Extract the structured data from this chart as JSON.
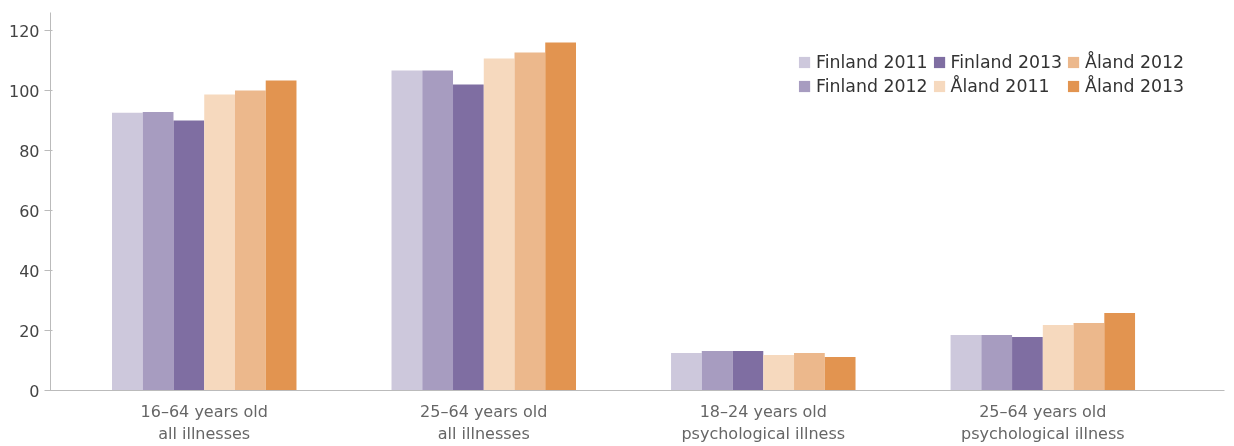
{
  "chart_data": {
    "type": "bar",
    "categories": [
      "16–64 years old\nall illnesses",
      "25–64 years old\nall illnesses",
      "18–24 years old\npsychological illness",
      "25–64 years old\npsychological illness"
    ],
    "series": [
      {
        "name": "Finland 2011",
        "color": "#cdc8dc",
        "values": [
          92.6,
          106.7,
          12.5,
          18.5
        ]
      },
      {
        "name": "Finland 2012",
        "color": "#a79cc0",
        "values": [
          92.8,
          106.7,
          13.2,
          18.5
        ]
      },
      {
        "name": "Finland 2013",
        "color": "#7f6ea2",
        "values": [
          90,
          102,
          13.2,
          17.8
        ]
      },
      {
        "name": "Åland 2011",
        "color": "#f6d9be",
        "values": [
          98.7,
          110.7,
          11.8,
          21.8
        ]
      },
      {
        "name": "Åland 2012",
        "color": "#ecb88c",
        "values": [
          100,
          112.7,
          12.5,
          22.5
        ]
      },
      {
        "name": "Åland 2013",
        "color": "#e29450",
        "values": [
          103.3,
          116,
          11.2,
          25.8
        ]
      }
    ],
    "ylim": [
      0,
      126
    ],
    "yticks": [
      0,
      20,
      40,
      60,
      80,
      100,
      120
    ],
    "grid": false,
    "legend": "top right"
  }
}
